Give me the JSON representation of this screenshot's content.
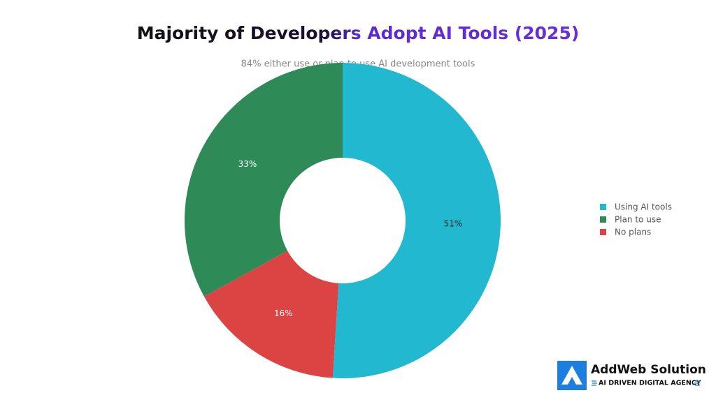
{
  "chart_data": {
    "type": "donut",
    "title": "Majority of Developers Adopt AI Tools (2025)",
    "subtitle": "84% either use or plan to use AI development tools",
    "categories": [
      "Using AI tools",
      "No plans",
      "Plan to use"
    ],
    "values": [
      51,
      16,
      33
    ],
    "value_labels": [
      "51%",
      "16%",
      "33%"
    ],
    "colors": [
      "#22b8cf",
      "#dc4444",
      "#2e8b57"
    ],
    "legend": "right"
  },
  "logo": {
    "name": "AddWeb Solution",
    "tagline": "AI DRIVEN DIGITAL AGENCY"
  }
}
